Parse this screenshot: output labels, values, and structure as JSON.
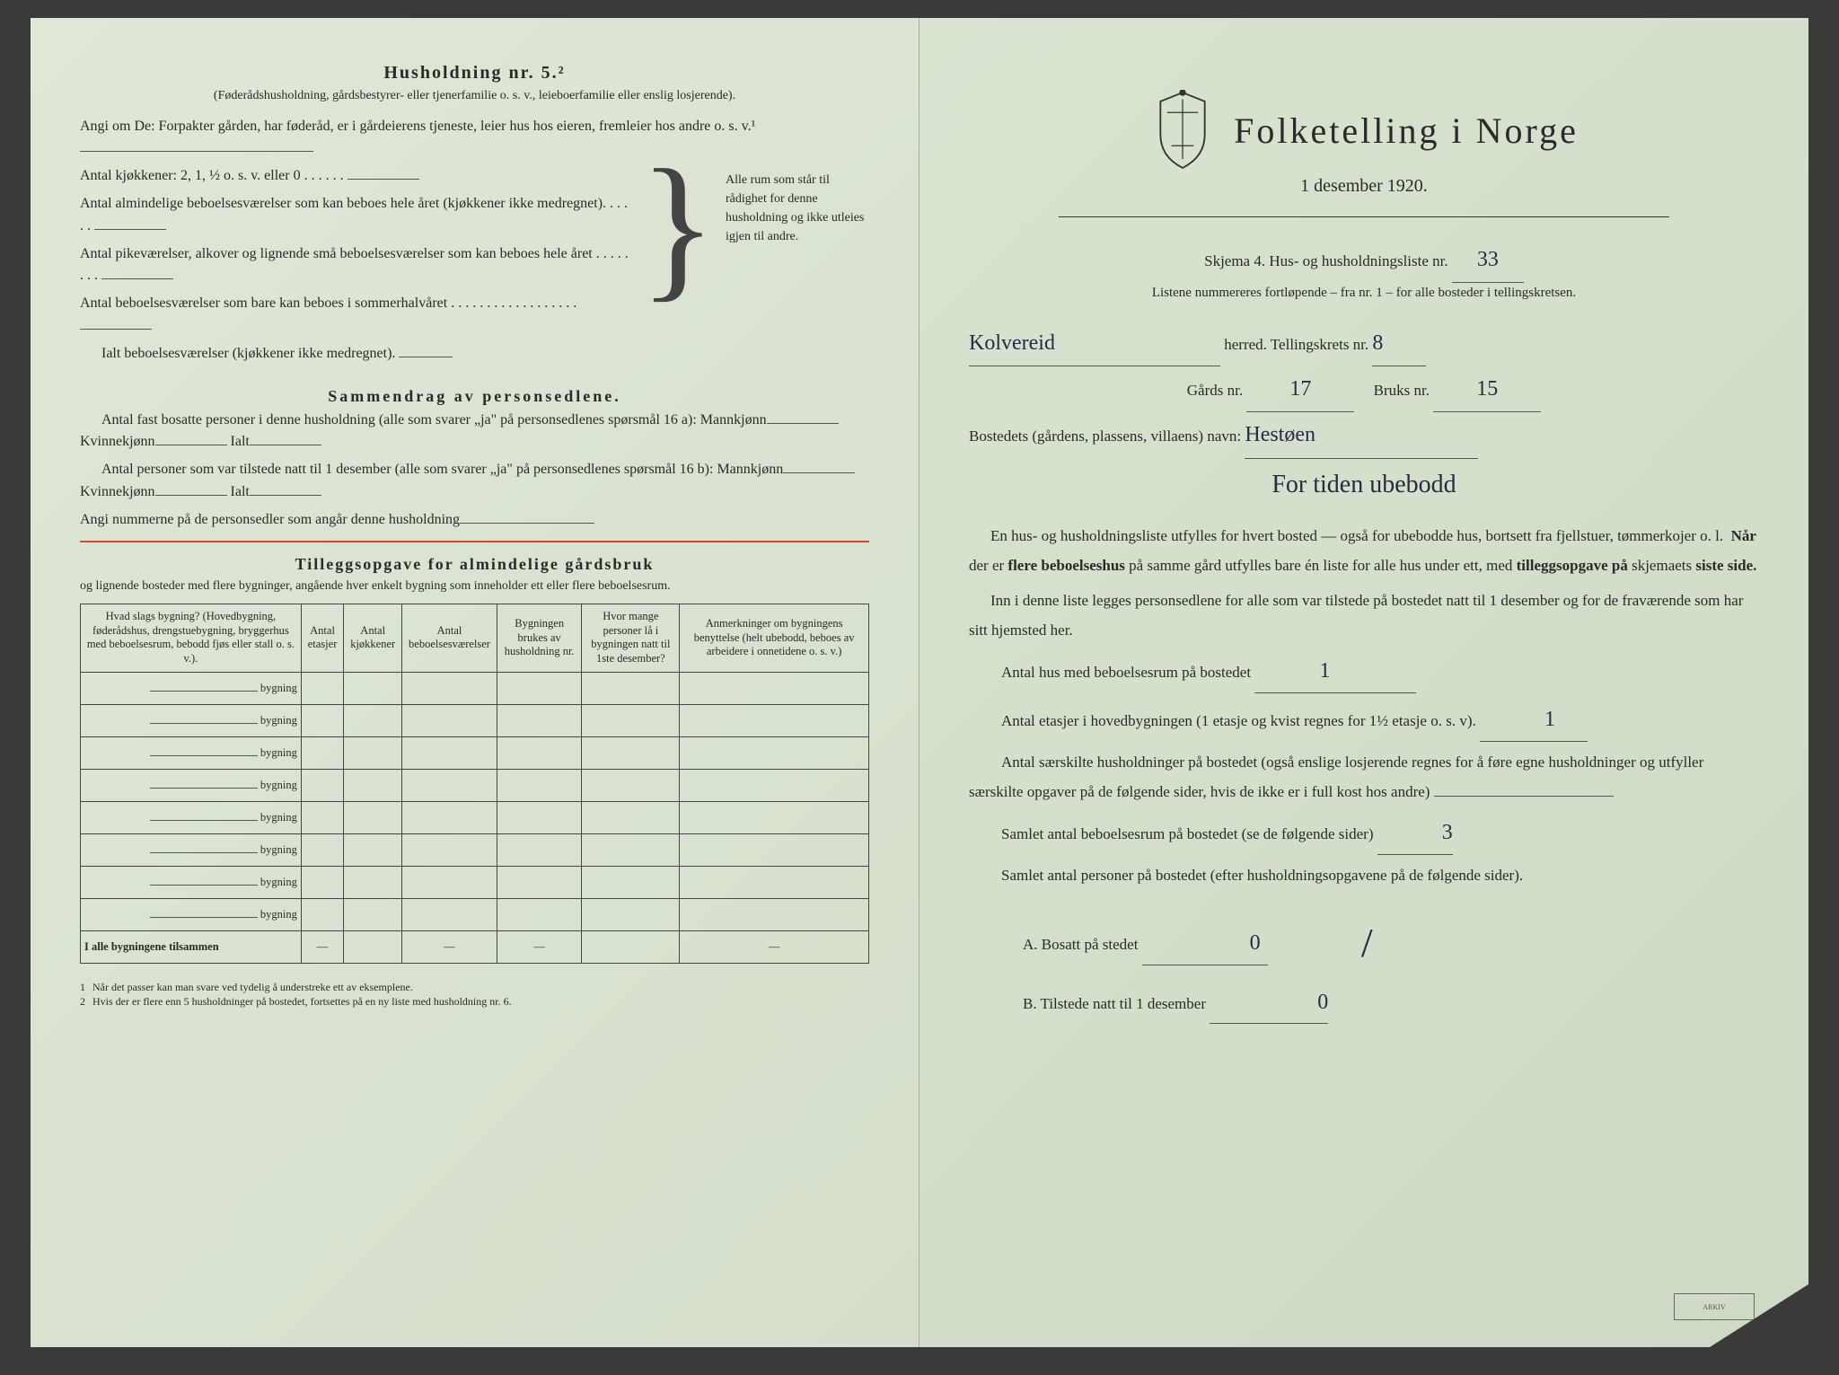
{
  "left": {
    "heading": "Husholdning nr. 5.²",
    "sub": "(Føderådshusholdning, gårdsbestyrer- eller tjenerfamilie o. s. v., leieboerfamilie eller enslig losjerende).",
    "intro": "Angi om De: Forpakter gården, har føderåd, er i gårdeierens tjeneste, leier hus hos eieren, fremleier hos andre o. s. v.¹",
    "kitchens": "Antal kjøkkener: 2, 1, ½ o. s. v. eller 0 . . . . . .",
    "rooms1": "Antal almindelige beboelsesværelser som kan beboes hele året (kjøkkener ikke medregnet). . . . . .",
    "rooms2": "Antal pikeværelser, alkover og lignende små beboelsesværelser som kan beboes hele året . . . . . . . .",
    "rooms3": "Antal beboelsesværelser som bare kan beboes i sommerhalvåret . . . . . . . . . . . . . . . . . .",
    "rooms_total": "Ialt beboelsesværelser (kjøkkener ikke medregnet).",
    "brace_text": "Alle rum som står til rådighet for denne husholdning og ikke utleies igjen til andre.",
    "summary_heading": "Sammendrag av personsedlene.",
    "sum_p1a": "Antal fast bosatte personer i denne husholdning (alle som svarer „ja\" på personsedlenes spørsmål 16 a): Mannkjønn",
    "sum_p1b": "Kvinnekjønn",
    "sum_p1c": "Ialt",
    "sum_p2a": "Antal personer som var tilstede natt til 1 desember (alle som svarer „ja\" på personsedlenes spørsmål 16 b): Mannkjønn",
    "sum_p3": "Angi nummerne på de personsedler som angår denne husholdning",
    "tillegg_heading": "Tilleggsopgave for almindelige gårdsbruk",
    "tillegg_sub": "og lignende bosteder med flere bygninger, angående hver enkelt bygning som inneholder ett eller flere beboelsesrum.",
    "table": {
      "headers": [
        "Hvad slags bygning?\n(Hovedbygning, føderådshus, drengstuebygning, bryggerhus med beboelsesrum, bebodd fjøs eller stall o. s. v.).",
        "Antal etasjer",
        "Antal kjøkkener",
        "Antal beboelsesværelser",
        "Bygningen brukes av husholdning nr.",
        "Hvor mange personer lå i bygningen natt til 1ste desember?",
        "Anmerkninger om bygningens benyttelse (helt ubebodd, beboes av arbeidere i onnetidene o. s. v.)"
      ],
      "row_label": "bygning",
      "rows": 8,
      "sum_label": "I alle bygningene tilsammen"
    },
    "footnotes": [
      "Når det passer kan man svare ved tydelig å understreke ett av eksemplene.",
      "Hvis der er flere enn 5 husholdninger på bostedet, fortsettes på en ny liste med husholdning nr. 6."
    ]
  },
  "right": {
    "title": "Folketelling i Norge",
    "date": "1 desember 1920.",
    "skjema": "Skjema 4.  Hus- og husholdningsliste nr.",
    "skjema_val": "33",
    "listene": "Listene nummereres fortløpende – fra nr. 1 – for alle bosteder i tellingskretsen.",
    "herred_hw": "Kolvereid",
    "herred": "herred.   Tellingskrets nr.",
    "krets_val": "8",
    "gards": "Gårds nr.",
    "gards_val": "17",
    "bruks": "Bruks nr.",
    "bruks_val": "15",
    "bosted": "Bostedets (gårdens, plassens, villaens) navn:",
    "bosted_val": "Hestøen",
    "note_hw": "For tiden ubebodd",
    "body1": "En hus- og husholdningsliste utfylles for hvert bosted — også for ubebodde hus, bortsett fra fjellstuer, tømmerkojer o. l.  Når der er flere beboelseshus på samme gård utfylles bare én liste for alle hus under ett, med tilleggsopgave på skjemaets siste side.",
    "body2": "Inn i denne liste legges personsedlene for alle som var tilstede på bostedet natt til 1 desember og for de fraværende som har sitt hjemsted her.",
    "q1": "Antal hus med beboelsesrum på bostedet",
    "q1_val": "1",
    "q2": "Antal etasjer i hovedbygningen (1 etasje og kvist regnes for 1½ etasje o. s. v).",
    "q2_val": "1",
    "q3": "Antal særskilte husholdninger på bostedet (også enslige losjerende regnes for å føre egne husholdninger og utfyller særskilte opgaver på de følgende sider, hvis de ikke er i full kost hos andre)",
    "q4": "Samlet antal beboelsesrum på bostedet (se de følgende sider)",
    "q4_val": "3",
    "q5": "Samlet antal personer på bostedet (efter husholdningsopgavene på de følgende sider).",
    "qA": "A.  Bosatt på stedet",
    "qA_val": "0",
    "qB": "B.  Tilstede natt til 1 desember",
    "qB_val": "0"
  },
  "colors": {
    "paper": "#dce5d4",
    "ink": "#2a2a2a",
    "handwriting": "#2a2a45",
    "redline": "#d04a2a"
  }
}
